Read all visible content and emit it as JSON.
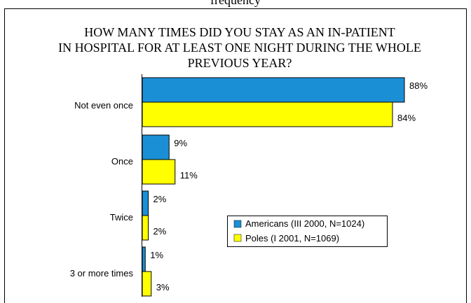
{
  "header": {
    "top_line": "frequency"
  },
  "chart_data": {
    "type": "bar",
    "orientation": "horizontal",
    "title_lines": [
      "HOW MANY TIMES DID YOU STAY AS AN IN-PATIENT",
      "IN HOSPITAL FOR AT LEAST ONE NIGHT DURING THE WHOLE",
      "PREVIOUS YEAR?"
    ],
    "categories": [
      "Not even once",
      "Once",
      "Twice",
      "3 or more times"
    ],
    "series": [
      {
        "name": "Americans (III 2000, N=1024)",
        "color": "#1b8fd6",
        "values": [
          88,
          9,
          2,
          1
        ],
        "labels": [
          "88%",
          "9%",
          "2%",
          "1%"
        ]
      },
      {
        "name": "Poles (I 2001, N=1069)",
        "color": "#ffff00",
        "values": [
          84,
          11,
          2,
          3
        ],
        "labels": [
          "84%",
          "11%",
          "2%",
          "3%"
        ]
      }
    ],
    "xlim": [
      0,
      100
    ],
    "legend_position": "bottom-right",
    "grid": false
  }
}
